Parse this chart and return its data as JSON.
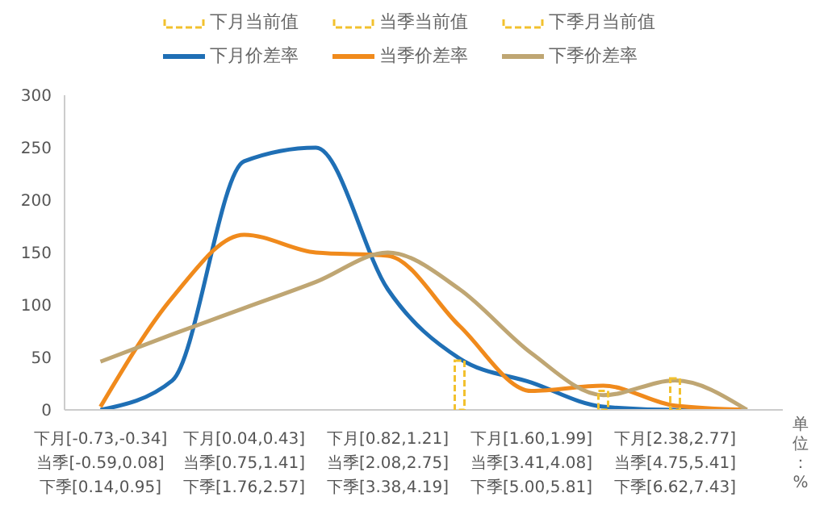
{
  "chart_data": {
    "type": "line",
    "categories": [
      "下月[-0.73,-0.34]\n当季[-0.59,0.08]\n下季[0.14,0.95]",
      null,
      "下月[0.04,0.43]\n当季[0.75,1.41]\n下季[1.76,2.57]",
      null,
      "下月[0.82,1.21]\n当季[2.08,2.75]\n下季[3.38,4.19]",
      null,
      "下月[1.60,1.99]\n当季[3.41,4.08]\n下季[5.00,5.81]",
      null,
      "下月[2.38,2.77]\n当季[4.75,5.41]\n下季[6.62,7.43]",
      null
    ],
    "series": [
      {
        "name": "下月当前值",
        "type": "bar",
        "line_style": "dashed",
        "color": "#f2c12e",
        "values": [
          null,
          null,
          null,
          null,
          null,
          47,
          null,
          null,
          null,
          null
        ]
      },
      {
        "name": "当季当前值",
        "type": "bar",
        "line_style": "dashed",
        "color": "#f2c12e",
        "values": [
          null,
          null,
          null,
          null,
          null,
          null,
          null,
          18,
          null,
          null
        ]
      },
      {
        "name": "下季月当前值",
        "type": "bar",
        "line_style": "dashed",
        "color": "#f2c12e",
        "values": [
          null,
          null,
          null,
          null,
          null,
          null,
          null,
          null,
          30,
          null
        ]
      },
      {
        "name": "下月价差率",
        "color": "#1f6fb5",
        "values": [
          0,
          28,
          237,
          250,
          115,
          49,
          26,
          3,
          0,
          0
        ]
      },
      {
        "name": "当季价差率",
        "color": "#f08a1c",
        "values": [
          3,
          107,
          167,
          150,
          147,
          80,
          18,
          23,
          4,
          0
        ]
      },
      {
        "name": "下季价差率",
        "color": "#bfa673",
        "values": [
          46,
          72,
          97,
          122,
          150,
          115,
          54,
          14,
          28,
          0
        ]
      }
    ],
    "ylim": [
      0,
      300
    ],
    "yticks": [
      0,
      50,
      100,
      150,
      200,
      250,
      300
    ],
    "legend": "top",
    "annotations": [
      "单位：%"
    ]
  }
}
